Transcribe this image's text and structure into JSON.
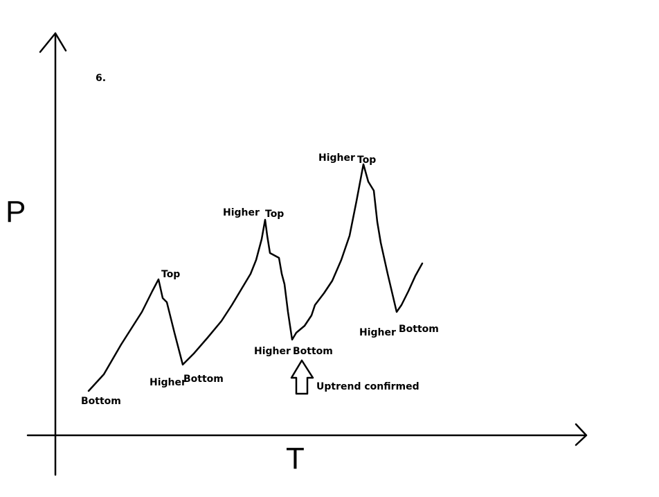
{
  "figure_number": "6.",
  "axes": {
    "y_label": "P",
    "x_label": "T"
  },
  "labels": [
    "Bottom",
    "Top",
    "Higher",
    "Bottom",
    "Higher",
    "Top",
    "Higher",
    "Bottom",
    "Higher",
    "Top",
    "Higher",
    "Bottom"
  ],
  "annotation": "Uptrend confirmed"
}
